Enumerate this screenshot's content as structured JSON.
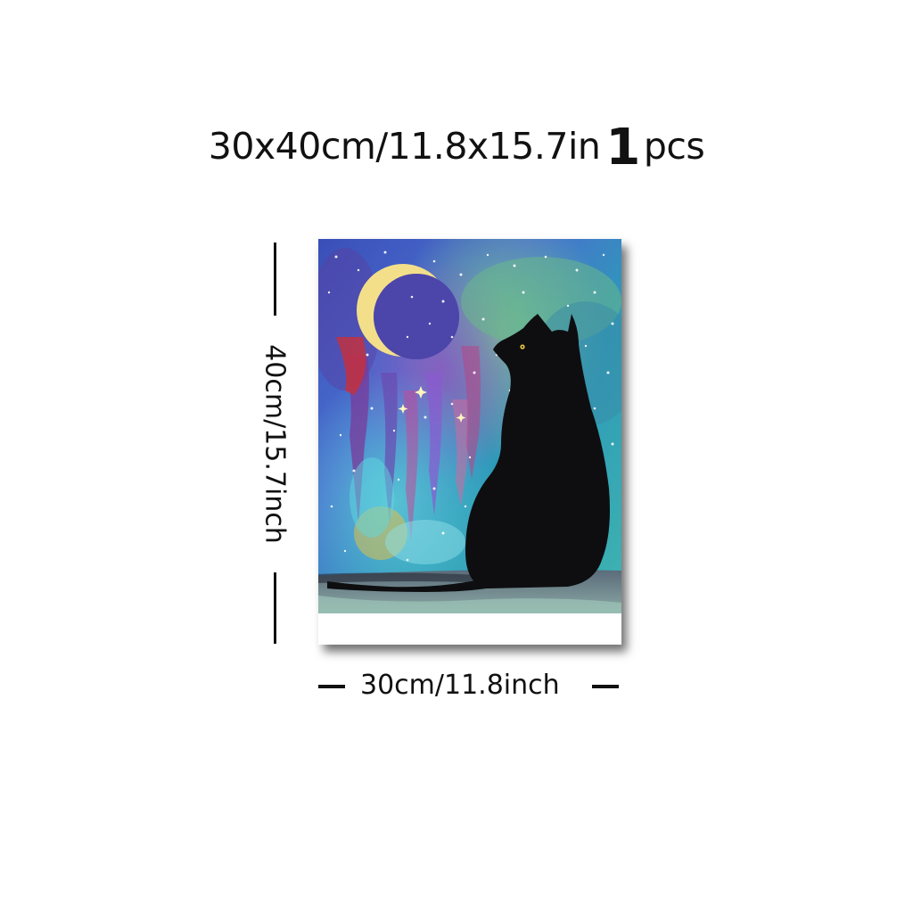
{
  "title": {
    "size_text": "30x40cm/11.8x15.7in",
    "quantity": "1",
    "unit": "pcs"
  },
  "dimensions": {
    "height_label": "40cm/15.7inch",
    "width_label": "30cm/11.8inch"
  },
  "colors": {
    "text": "#111111",
    "background": "#ffffff",
    "cat": "#0e0e10",
    "moon": "#f0d77a"
  }
}
